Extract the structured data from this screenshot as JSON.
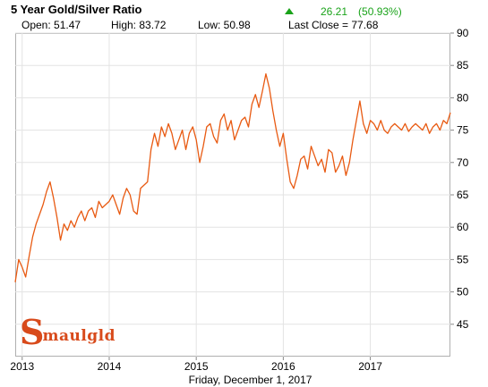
{
  "header": {
    "title": "5 Year Gold/Silver Ratio",
    "change_value": "26.21",
    "change_percent": "(50.93%)",
    "change_direction": "up",
    "change_color": "#1aa31a"
  },
  "stats": {
    "open": "Open: 51.47",
    "high": "High: 83.72",
    "low": "Low: 50.98",
    "last_close": "Last Close = 77.68"
  },
  "footer": {
    "date_label": "Friday, December  1, 2017"
  },
  "logo": {
    "initial": "S",
    "rest": "maulgld"
  },
  "chart_data": {
    "type": "line",
    "title": "5 Year Gold/Silver Ratio",
    "xlabel": "",
    "ylabel": "",
    "xlim": [
      2012.92,
      2017.92
    ],
    "ylim": [
      40,
      90
    ],
    "y_ticks": [
      45,
      50,
      55,
      60,
      65,
      70,
      75,
      80,
      85,
      90
    ],
    "x_ticks": [
      {
        "label": "2013",
        "value": 2013.0
      },
      {
        "label": "2014",
        "value": 2014.0
      },
      {
        "label": "2015",
        "value": 2015.0
      },
      {
        "label": "2016",
        "value": 2016.0
      },
      {
        "label": "2017",
        "value": 2017.0
      }
    ],
    "y_axis_side": "right",
    "grid": true,
    "line_color": "#e85a12",
    "series": [
      {
        "name": "",
        "x": [
          2012.92,
          2012.96,
          2013.0,
          2013.04,
          2013.08,
          2013.12,
          2013.16,
          2013.2,
          2013.24,
          2013.28,
          2013.32,
          2013.36,
          2013.4,
          2013.44,
          2013.48,
          2013.52,
          2013.56,
          2013.6,
          2013.64,
          2013.68,
          2013.72,
          2013.76,
          2013.8,
          2013.84,
          2013.88,
          2013.92,
          2013.96,
          2014.0,
          2014.04,
          2014.08,
          2014.12,
          2014.16,
          2014.2,
          2014.24,
          2014.28,
          2014.32,
          2014.36,
          2014.4,
          2014.44,
          2014.48,
          2014.52,
          2014.56,
          2014.6,
          2014.64,
          2014.68,
          2014.72,
          2014.76,
          2014.8,
          2014.84,
          2014.88,
          2014.92,
          2014.96,
          2015.0,
          2015.04,
          2015.08,
          2015.12,
          2015.16,
          2015.2,
          2015.24,
          2015.28,
          2015.32,
          2015.36,
          2015.4,
          2015.44,
          2015.48,
          2015.52,
          2015.56,
          2015.6,
          2015.64,
          2015.68,
          2015.72,
          2015.76,
          2015.8,
          2015.84,
          2015.88,
          2015.92,
          2015.96,
          2016.0,
          2016.04,
          2016.08,
          2016.12,
          2016.16,
          2016.2,
          2016.24,
          2016.28,
          2016.32,
          2016.36,
          2016.4,
          2016.44,
          2016.48,
          2016.52,
          2016.56,
          2016.6,
          2016.64,
          2016.68,
          2016.72,
          2016.76,
          2016.8,
          2016.84,
          2016.88,
          2016.92,
          2016.96,
          2017.0,
          2017.04,
          2017.08,
          2017.12,
          2017.16,
          2017.2,
          2017.24,
          2017.28,
          2017.32,
          2017.36,
          2017.4,
          2017.44,
          2017.48,
          2017.52,
          2017.56,
          2017.6,
          2017.64,
          2017.68,
          2017.72,
          2017.76,
          2017.8,
          2017.84,
          2017.88,
          2017.92
        ],
        "values": [
          51.5,
          55.0,
          53.8,
          52.3,
          55.5,
          58.5,
          60.5,
          62.0,
          63.5,
          65.5,
          67.0,
          64.5,
          61.5,
          58.0,
          60.5,
          59.5,
          61.0,
          60.0,
          61.5,
          62.5,
          61.0,
          62.5,
          63.0,
          61.5,
          64.0,
          63.0,
          63.5,
          64.0,
          65.0,
          63.5,
          62.0,
          64.5,
          66.0,
          65.0,
          62.5,
          62.0,
          66.0,
          66.5,
          67.0,
          72.0,
          74.5,
          72.5,
          75.5,
          74.0,
          76.0,
          74.5,
          72.0,
          73.5,
          75.0,
          72.0,
          74.5,
          75.5,
          73.5,
          70.0,
          72.5,
          75.5,
          76.0,
          74.0,
          73.0,
          76.5,
          77.5,
          75.0,
          76.5,
          73.5,
          75.0,
          76.5,
          77.0,
          75.5,
          79.0,
          80.5,
          78.5,
          81.0,
          83.7,
          81.5,
          78.0,
          75.0,
          72.5,
          74.5,
          70.5,
          67.0,
          66.0,
          68.0,
          70.5,
          71.0,
          69.0,
          72.5,
          71.0,
          69.5,
          70.5,
          68.5,
          72.0,
          71.5,
          68.5,
          69.5,
          71.0,
          68.0,
          70.0,
          73.5,
          76.5,
          79.5,
          76.0,
          74.5,
          76.5,
          76.0,
          75.0,
          76.5,
          75.0,
          74.5,
          75.5,
          76.0,
          75.5,
          75.0,
          76.0,
          74.8,
          75.5,
          76.0,
          75.5,
          75.0,
          76.0,
          74.5,
          75.5,
          76.0,
          75.0,
          76.5,
          76.0,
          77.7
        ]
      }
    ]
  }
}
